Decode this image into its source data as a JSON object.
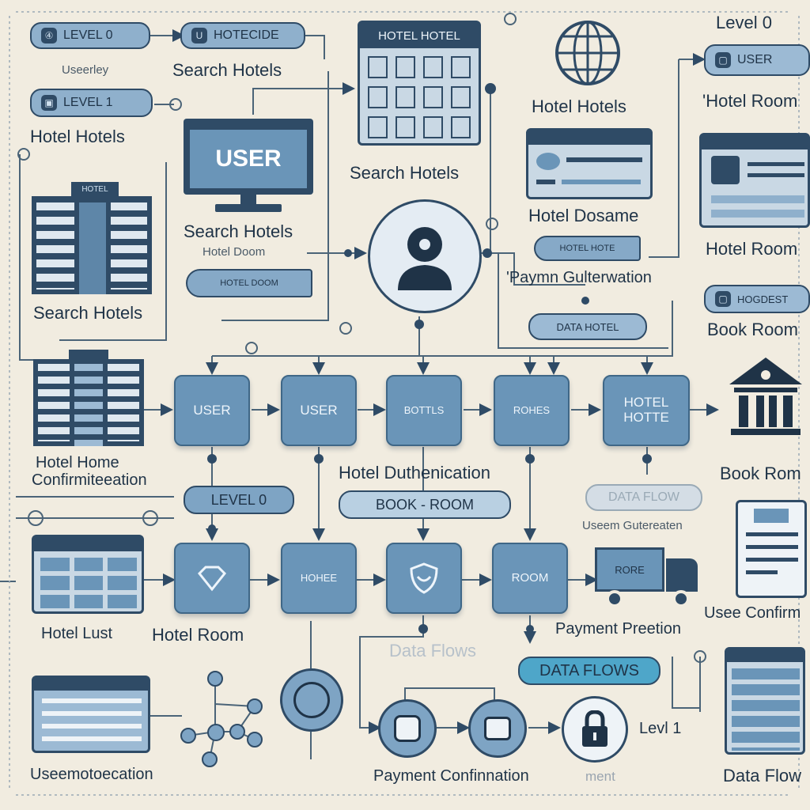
{
  "labels": {
    "level_0_top": "Level 0",
    "uselevel": "Useerley",
    "search_hotels_1": "Search Hotels",
    "hotel_hotels_left": "Hotel Hotels",
    "hotel_hotels_right": "Hotel Hotels",
    "search_hotels_2": "Search Hotels",
    "search_hotels_3": "Search Hotels",
    "search_hotels_4": "Search Hotels",
    "hotel_doom": "Hotel Doom",
    "hotel_room_top": "'Hotel Room",
    "hotel_dosame": "Hotel Dosame",
    "hotel_room_right": "Hotel Room",
    "payment_gen": "'Paymn Gulterwation",
    "book_room_right": "Book Room",
    "hotel_home_conf_1": "Hotel Home",
    "hotel_home_conf_2": "Confirmiteeation",
    "hotel_authentication": "Hotel Duthenication",
    "book_rom": "Book Rom",
    "user_gutertain": "Useem Gutereaten",
    "hotel_lust": "Hotel Lust",
    "hotel_room_mid": "Hotel Room",
    "payment_presentation": "Payment Preetion",
    "usee_confirm": "Usee Confirm",
    "data_flows_faint": "Data Flows",
    "level_1": "Levl 1",
    "user_authentication": "Useemotoecation",
    "payment_confirmation": "Payment Confinnation",
    "ment": "ment",
    "data_flow_bottom": "Data Flow"
  },
  "pills": {
    "level0_top": "LEVEL 0",
    "hoteoe": "HOTECIDE",
    "level1": "LEVEL 1",
    "user_right": "USER",
    "hotel_hotel_header": "HOTEL HOTEL",
    "search_arrow": "HOTEL DOOM",
    "payment_pill": "HOTEL HOTE",
    "data_hotel": "DATA HOTEL",
    "hodgest": "HOGDEST",
    "level0_mid": "LEVEL 0",
    "book_room": "BOOK - ROOM",
    "data_flow_faded": "DATA FLOW",
    "data_flows": "DATA FLOWS"
  },
  "nodes": {
    "row1": [
      "USER",
      "USER",
      "BOTTLS",
      "ROHES",
      "HOTEL HOTTE"
    ],
    "row2": [
      "",
      "HOHEE",
      "",
      "ROOM"
    ]
  },
  "icons": {
    "monitor_label": "USER",
    "truck_label": "RORE",
    "building_sign": "HOTEL"
  },
  "colors": {
    "background": "#f1ece0",
    "node_fill": "#6a95b8",
    "dark_navy": "#2f4b66",
    "accent_cyan": "#4ea6c9"
  }
}
